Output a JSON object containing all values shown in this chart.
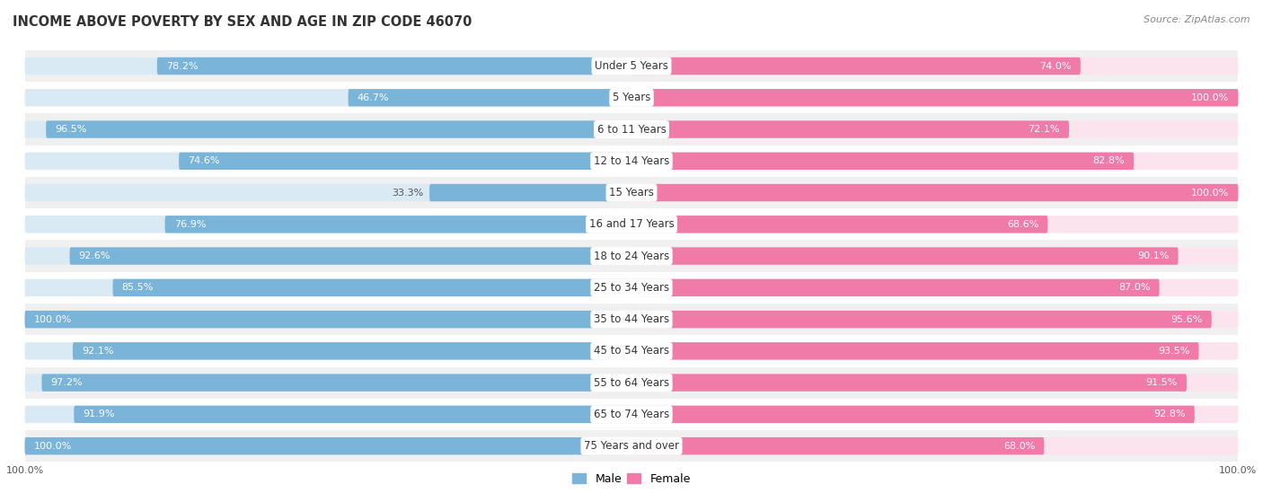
{
  "title": "INCOME ABOVE POVERTY BY SEX AND AGE IN ZIP CODE 46070",
  "source": "Source: ZipAtlas.com",
  "categories": [
    "Under 5 Years",
    "5 Years",
    "6 to 11 Years",
    "12 to 14 Years",
    "15 Years",
    "16 and 17 Years",
    "18 to 24 Years",
    "25 to 34 Years",
    "35 to 44 Years",
    "45 to 54 Years",
    "55 to 64 Years",
    "65 to 74 Years",
    "75 Years and over"
  ],
  "male_values": [
    78.2,
    46.7,
    96.5,
    74.6,
    33.3,
    76.9,
    92.6,
    85.5,
    100.0,
    92.1,
    97.2,
    91.9,
    100.0
  ],
  "female_values": [
    74.0,
    100.0,
    72.1,
    82.8,
    100.0,
    68.6,
    90.1,
    87.0,
    95.6,
    93.5,
    91.5,
    92.8,
    68.0
  ],
  "male_color": "#7ab4d8",
  "female_color": "#f07aa8",
  "male_bg_color": "#daeaf5",
  "female_bg_color": "#fce4ee",
  "row_bg_color": "#f0f0f0",
  "row_alt_bg_color": "#ffffff",
  "label_bg_color": "#ffffff",
  "title_fontsize": 10.5,
  "source_fontsize": 8,
  "bar_label_fontsize": 8,
  "cat_label_fontsize": 8.5,
  "tick_fontsize": 8,
  "max_value": 100.0
}
